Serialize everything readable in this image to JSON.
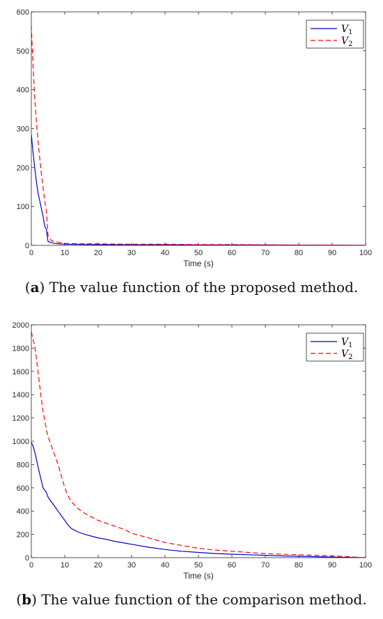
{
  "captions": [
    {
      "letter": "a",
      "text": " The value function of the proposed method."
    },
    {
      "letter": "b",
      "text": " The value function of the comparison method."
    }
  ],
  "chart_data": [
    {
      "type": "line",
      "xlabel": "Time (s)",
      "ylabel": "",
      "xlim": [
        0,
        100
      ],
      "ylim": [
        0,
        600
      ],
      "xticks": [
        0,
        10,
        20,
        30,
        40,
        50,
        60,
        70,
        80,
        90,
        100
      ],
      "yticks": [
        0,
        100,
        200,
        300,
        400,
        500,
        600
      ],
      "legend_position": "top-right",
      "grid": false,
      "series": [
        {
          "name": "V",
          "subscript": "1",
          "color": "#0000cc",
          "style": "solid",
          "x": [
            0,
            0.5,
            1,
            1.5,
            2,
            2.5,
            3,
            3.5,
            4,
            4.5,
            5,
            6,
            7,
            8,
            10,
            15,
            20,
            30,
            40,
            50,
            60,
            70,
            80,
            90,
            100
          ],
          "y": [
            285,
            240,
            200,
            165,
            135,
            115,
            95,
            75,
            50,
            40,
            10,
            7,
            5,
            4,
            3,
            2.5,
            2,
            1.5,
            1.5,
            1,
            1,
            1,
            0.5,
            0.5,
            0
          ]
        },
        {
          "name": "V",
          "subscript": "2",
          "color": "#ff0000",
          "style": "dashed",
          "x": [
            0,
            0.3,
            1,
            1.5,
            2,
            2.5,
            3,
            3.5,
            4,
            4.5,
            5,
            6,
            7,
            8,
            10,
            15,
            20,
            30,
            40,
            50,
            60,
            70,
            80,
            90,
            100
          ],
          "y": [
            565,
            500,
            380,
            320,
            270,
            225,
            185,
            150,
            115,
            90,
            25,
            12,
            10,
            8,
            5,
            4,
            4,
            3,
            3,
            2,
            2,
            1.5,
            1,
            1,
            0
          ]
        }
      ]
    },
    {
      "type": "line",
      "xlabel": "Time (s)",
      "ylabel": "",
      "xlim": [
        0,
        100
      ],
      "ylim": [
        0,
        2000
      ],
      "xticks": [
        0,
        10,
        20,
        30,
        40,
        50,
        60,
        70,
        80,
        90,
        100
      ],
      "yticks": [
        0,
        200,
        400,
        600,
        800,
        1000,
        1200,
        1400,
        1600,
        1800,
        2000
      ],
      "legend_position": "top-right",
      "grid": false,
      "series": [
        {
          "name": "V",
          "subscript": "1",
          "color": "#0000cc",
          "style": "solid",
          "x": [
            0,
            0.5,
            1,
            1.5,
            2,
            2.5,
            3,
            3.5,
            4,
            4.5,
            5,
            6,
            7,
            8,
            9,
            10,
            11,
            12,
            14,
            16,
            18,
            20,
            22,
            25,
            28,
            30,
            35,
            40,
            45,
            50,
            55,
            60,
            65,
            70,
            75,
            80,
            85,
            90,
            95,
            100
          ],
          "y": [
            990,
            960,
            910,
            850,
            780,
            720,
            660,
            600,
            580,
            560,
            520,
            480,
            440,
            400,
            360,
            320,
            280,
            250,
            220,
            200,
            185,
            170,
            160,
            140,
            125,
            115,
            90,
            70,
            55,
            45,
            35,
            30,
            25,
            20,
            15,
            12,
            8,
            5,
            2,
            0
          ]
        },
        {
          "name": "V",
          "subscript": "2",
          "color": "#ff0000",
          "style": "dashed",
          "x": [
            0,
            0.3,
            1,
            1.5,
            2,
            2.5,
            3,
            3.5,
            4,
            4.5,
            5,
            6,
            7,
            8,
            9,
            10,
            11,
            12,
            14,
            16,
            18,
            20,
            22,
            25,
            28,
            30,
            35,
            40,
            45,
            50,
            55,
            60,
            65,
            70,
            75,
            80,
            85,
            90,
            95,
            100
          ],
          "y": [
            1940,
            1900,
            1820,
            1720,
            1600,
            1480,
            1360,
            1260,
            1180,
            1100,
            1040,
            960,
            880,
            800,
            700,
            600,
            530,
            480,
            420,
            380,
            350,
            320,
            300,
            270,
            240,
            210,
            170,
            130,
            105,
            80,
            65,
            55,
            45,
            35,
            30,
            25,
            20,
            15,
            8,
            0
          ]
        }
      ]
    }
  ]
}
